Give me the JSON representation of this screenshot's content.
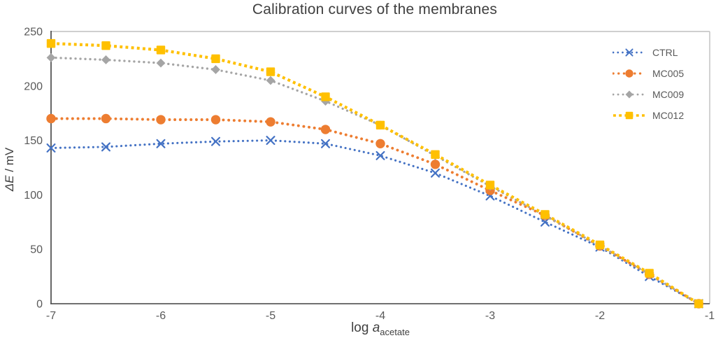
{
  "chart_data": {
    "type": "scatter",
    "title": "Calibration curves of the membranes",
    "xlabel": "log a_acetate",
    "xlabel_parts": {
      "prefix": "log ",
      "italic_var": "a",
      "subscript": "acetate"
    },
    "ylabel": "ΔE / mV",
    "ylabel_parts": {
      "italic_var": "ΔE",
      "rest": " / mV"
    },
    "xlim": [
      -7,
      -1
    ],
    "ylim": [
      0,
      250
    ],
    "x_ticks": [
      "-7",
      "-6",
      "-5",
      "-4",
      "-3",
      "-2",
      "-1"
    ],
    "x_tick_values": [
      -7,
      -6,
      -5,
      -4,
      -3,
      -2,
      -1
    ],
    "y_ticks": [
      "0",
      "50",
      "100",
      "150",
      "200",
      "250"
    ],
    "y_tick_values": [
      0,
      50,
      100,
      150,
      200,
      250
    ],
    "grid": false,
    "legend_position": "top-right",
    "x": [
      -7,
      -6.5,
      -6,
      -5.5,
      -5,
      -4.5,
      -4,
      -3.5,
      -3,
      -2.5,
      -2,
      -1.55,
      -1.1
    ],
    "series": [
      {
        "name": "CTRL",
        "color": "#4472C4",
        "marker": "x",
        "values": [
          143,
          144,
          147,
          149,
          150,
          147,
          136,
          120,
          99,
          75,
          52,
          25,
          0
        ]
      },
      {
        "name": "MC005",
        "color": "#ED7D31",
        "marker": "circle",
        "values": [
          170,
          170,
          169,
          169,
          167,
          160,
          147,
          128,
          104,
          81,
          53,
          27,
          0
        ]
      },
      {
        "name": "MC009",
        "color": "#A5A5A5",
        "marker": "diamond",
        "values": [
          226,
          224,
          221,
          215,
          205,
          186,
          164,
          136,
          108,
          81,
          53,
          27,
          0
        ]
      },
      {
        "name": "MC012",
        "color": "#FFC000",
        "marker": "square",
        "values": [
          239,
          237,
          233,
          225,
          213,
          190,
          164,
          137,
          109,
          82,
          54,
          28,
          0
        ]
      }
    ],
    "style_colors": {
      "title_text": "#404040",
      "tick_text": "#595959",
      "axis_line": "#404040",
      "plot_border": "#BFBFBF",
      "background": "#FFFFFF"
    }
  }
}
